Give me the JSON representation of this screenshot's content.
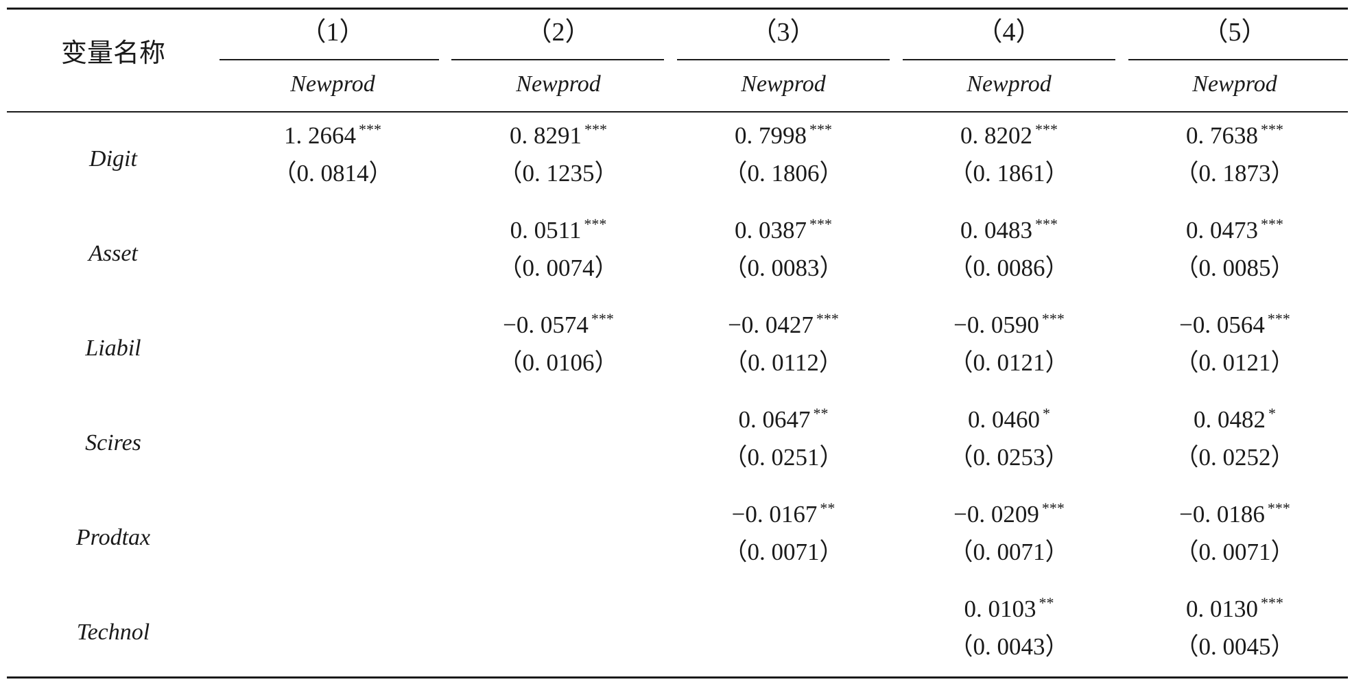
{
  "table": {
    "header": {
      "variable_label": "变量名称",
      "columns": [
        {
          "number": "（1）",
          "dep_var": "Newprod"
        },
        {
          "number": "（2）",
          "dep_var": "Newprod"
        },
        {
          "number": "（3）",
          "dep_var": "Newprod"
        },
        {
          "number": "（4）",
          "dep_var": "Newprod"
        },
        {
          "number": "（5）",
          "dep_var": "Newprod"
        }
      ]
    },
    "rows": [
      {
        "name": "Digit",
        "cells": [
          {
            "coef": "1. 2664",
            "stars": "***",
            "se": "（0. 0814）"
          },
          {
            "coef": "0. 8291",
            "stars": "***",
            "se": "（0. 1235）"
          },
          {
            "coef": "0. 7998",
            "stars": "***",
            "se": "（0. 1806）"
          },
          {
            "coef": "0. 8202",
            "stars": "***",
            "se": "（0. 1861）"
          },
          {
            "coef": "0. 7638",
            "stars": "***",
            "se": "（0. 1873）"
          }
        ]
      },
      {
        "name": "Asset",
        "cells": [
          null,
          {
            "coef": "0. 0511",
            "stars": "***",
            "se": "（0. 0074）"
          },
          {
            "coef": "0. 0387",
            "stars": "***",
            "se": "（0. 0083）"
          },
          {
            "coef": "0. 0483",
            "stars": "***",
            "se": "（0. 0086）"
          },
          {
            "coef": "0. 0473",
            "stars": "***",
            "se": "（0. 0085）"
          }
        ]
      },
      {
        "name": "Liabil",
        "cells": [
          null,
          {
            "coef": "−0. 0574",
            "stars": "***",
            "se": "（0. 0106）"
          },
          {
            "coef": "−0. 0427",
            "stars": "***",
            "se": "（0. 0112）"
          },
          {
            "coef": "−0. 0590",
            "stars": "***",
            "se": "（0. 0121）"
          },
          {
            "coef": "−0. 0564",
            "stars": "***",
            "se": "（0. 0121）"
          }
        ]
      },
      {
        "name": "Scires",
        "cells": [
          null,
          null,
          {
            "coef": "0. 0647",
            "stars": "**",
            "se": "（0. 0251）"
          },
          {
            "coef": "0. 0460",
            "stars": "*",
            "se": "（0. 0253）"
          },
          {
            "coef": "0. 0482",
            "stars": "*",
            "se": "（0. 0252）"
          }
        ]
      },
      {
        "name": "Prodtax",
        "cells": [
          null,
          null,
          {
            "coef": "−0. 0167",
            "stars": "**",
            "se": "（0. 0071）"
          },
          {
            "coef": "−0. 0209",
            "stars": "***",
            "se": "（0. 0071）"
          },
          {
            "coef": "−0. 0186",
            "stars": "***",
            "se": "（0. 0071）"
          }
        ]
      },
      {
        "name": "Technol",
        "cells": [
          null,
          null,
          null,
          {
            "coef": "0. 0103",
            "stars": "**",
            "se": "（0. 0043）"
          },
          {
            "coef": "0. 0130",
            "stars": "***",
            "se": "（0. 0045）"
          }
        ]
      }
    ]
  }
}
